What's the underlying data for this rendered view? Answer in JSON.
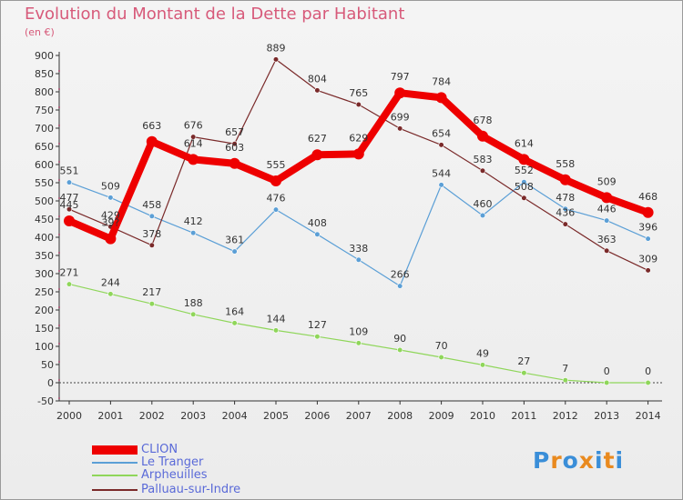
{
  "title": "Evolution du Montant de la Dette par Habitant",
  "unit": "(en €)",
  "logo": "Proxiti",
  "chart_data": {
    "type": "line",
    "x": [
      "2000",
      "2001",
      "2002",
      "2003",
      "2004",
      "2005",
      "2006",
      "2007",
      "2008",
      "2009",
      "2010",
      "2011",
      "2012",
      "2013",
      "2014"
    ],
    "ylim": [
      -50,
      900
    ],
    "yticks": [
      -50,
      0,
      50,
      100,
      150,
      200,
      250,
      300,
      350,
      400,
      450,
      500,
      550,
      600,
      650,
      700,
      750,
      800,
      850,
      900
    ],
    "grid": false,
    "legend_position": "bottom-left",
    "series": [
      {
        "name": "CLION",
        "color": "#ee0000",
        "values": [
          445,
          396,
          663,
          614,
          603,
          555,
          627,
          629,
          797,
          784,
          678,
          614,
          558,
          509,
          468
        ],
        "labels": [
          "445",
          "39?",
          "663",
          "614",
          "603",
          "555",
          "627",
          "629",
          "797",
          "784",
          "678",
          "614",
          "558",
          "509",
          "468"
        ]
      },
      {
        "name": "Le Tranger",
        "color": "#5b9fd6",
        "values": [
          551,
          509,
          458,
          412,
          361,
          476,
          408,
          338,
          266,
          544,
          460,
          552,
          478,
          446,
          396
        ],
        "labels": [
          "551",
          "509",
          "458",
          "412",
          "361",
          "476",
          "408",
          "338",
          "266",
          "544",
          "460",
          "552",
          "478",
          "446",
          "396"
        ]
      },
      {
        "name": "Arpheuilles",
        "color": "#8fd65a",
        "values": [
          271,
          244,
          217,
          188,
          164,
          144,
          127,
          109,
          90,
          70,
          49,
          27,
          7,
          0,
          0
        ],
        "labels": [
          "271",
          "244",
          "217",
          "188",
          "164",
          "144",
          "127",
          "109",
          "90",
          "70",
          "49",
          "27",
          "7",
          "0",
          "0"
        ]
      },
      {
        "name": "Palluau-sur-Indre",
        "color": "#7a2a2a",
        "values": [
          477,
          429,
          378,
          676,
          657,
          889,
          804,
          765,
          699,
          654,
          583,
          508,
          436,
          363,
          309
        ],
        "labels": [
          "477",
          "429",
          "378",
          "676",
          "657",
          "889",
          "804",
          "765",
          "699",
          "654",
          "583",
          "508",
          "436",
          "363",
          "309"
        ]
      }
    ]
  }
}
